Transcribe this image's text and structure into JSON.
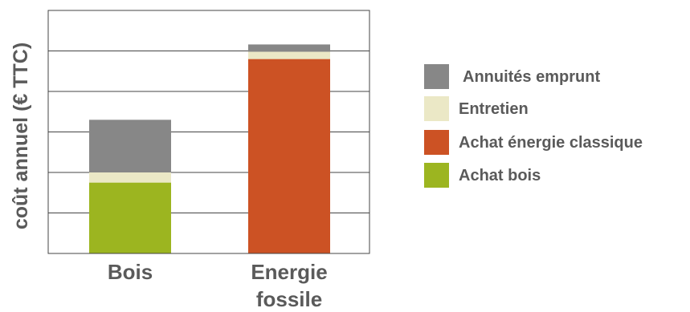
{
  "chart_data": {
    "type": "bar",
    "stacked": true,
    "title": "",
    "xlabel": "",
    "ylabel": "coût annuel (€ TTC)",
    "y_tick_labels_shown": false,
    "grid": true,
    "ylim": [
      0,
      6
    ],
    "categories": [
      {
        "lines": [
          "Bois"
        ]
      },
      {
        "lines": [
          "Energie",
          "fossile"
        ]
      }
    ],
    "series": [
      {
        "name": "Achat bois",
        "color": "#9cb520",
        "values": [
          1.75,
          0
        ]
      },
      {
        "name": "Achat énergie classique",
        "color": "#cc5224",
        "values": [
          0,
          4.8
        ]
      },
      {
        "name": "Entretien",
        "color": "#ebe8c6",
        "values": [
          0.25,
          0.18
        ]
      },
      {
        "name": "Annuités emprunt",
        "color": "#878787",
        "values": [
          1.3,
          0.18
        ]
      }
    ],
    "legend_order": [
      "Annuités emprunt",
      "Entretien",
      "Achat énergie classique",
      "Achat bois"
    ],
    "legend_position": "right"
  }
}
